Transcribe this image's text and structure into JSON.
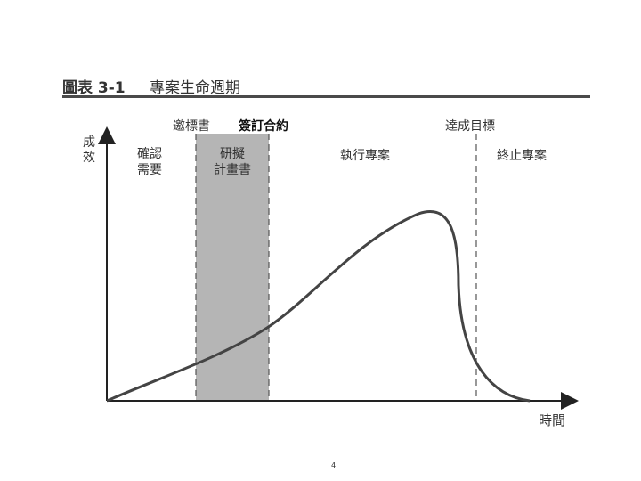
{
  "figure": {
    "number": "圖表 3-1",
    "title": "專案生命週期"
  },
  "axes": {
    "y_label": "成效",
    "x_label": "時間"
  },
  "milestones": {
    "tender": "邀標書",
    "contract": "簽訂合約",
    "goal": "達成目標"
  },
  "phases": {
    "needs": [
      "確認",
      "需要"
    ],
    "plan": [
      "研擬",
      "計畫書"
    ],
    "execute": "執行專案",
    "terminate": "終止專案"
  },
  "page_number": "4",
  "colors": {
    "phase_highlight": "#b5b5b5",
    "curve": "#444444",
    "axis": "#222222",
    "rule": "#4a4a4a"
  }
}
